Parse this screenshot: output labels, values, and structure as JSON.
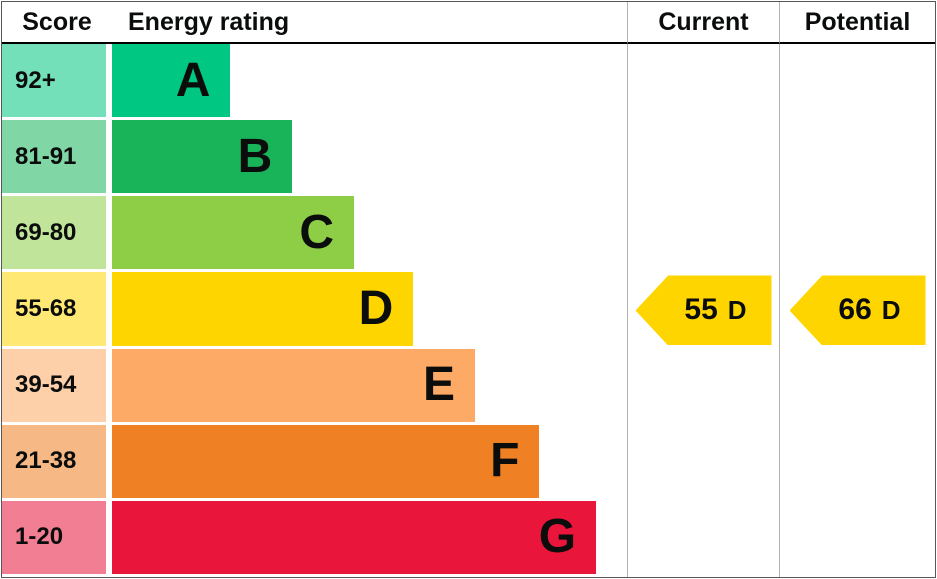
{
  "header": {
    "score": "Score",
    "energy_rating": "Energy rating",
    "current": "Current",
    "potential": "Potential"
  },
  "bands": [
    {
      "score": "92+",
      "letter": "A",
      "color": "#00c781",
      "tint": "#73e0ba",
      "width_pct": 23
    },
    {
      "score": "81-91",
      "letter": "B",
      "color": "#19b459",
      "tint": "#80d6a4",
      "width_pct": 35
    },
    {
      "score": "69-80",
      "letter": "C",
      "color": "#8dce46",
      "tint": "#c0e499",
      "width_pct": 47
    },
    {
      "score": "55-68",
      "letter": "D",
      "color": "#ffd500",
      "tint": "#ffe873",
      "width_pct": 58.5
    },
    {
      "score": "39-54",
      "letter": "E",
      "color": "#fcaa65",
      "tint": "#fdd0aa",
      "width_pct": 70.5
    },
    {
      "score": "21-38",
      "letter": "F",
      "color": "#ef8023",
      "tint": "#f6b986",
      "width_pct": 83
    },
    {
      "score": "1-20",
      "letter": "G",
      "color": "#e9153b",
      "tint": "#f27e93",
      "width_pct": 94
    }
  ],
  "current": {
    "value": "55",
    "letter": "D",
    "color": "#ffd500",
    "band_index": 3
  },
  "potential": {
    "value": "66",
    "letter": "D",
    "color": "#ffd500",
    "band_index": 3
  },
  "chart_data": {
    "type": "bar",
    "title": "Energy rating",
    "categories": [
      "A (92+)",
      "B (81-91)",
      "C (69-80)",
      "D (55-68)",
      "E (39-54)",
      "F (21-38)",
      "G (1-20)"
    ],
    "values": [
      23,
      35,
      47,
      58.5,
      70.5,
      83,
      94
    ],
    "value_note": "relative bar lengths as percent of rating column width",
    "band_colors": [
      "#00c781",
      "#19b459",
      "#8dce46",
      "#ffd500",
      "#fcaa65",
      "#ef8023",
      "#e9153b"
    ],
    "current": {
      "score": 55,
      "rating": "D"
    },
    "potential": {
      "score": 66,
      "rating": "D"
    },
    "legend_position": "none",
    "grid": false
  }
}
